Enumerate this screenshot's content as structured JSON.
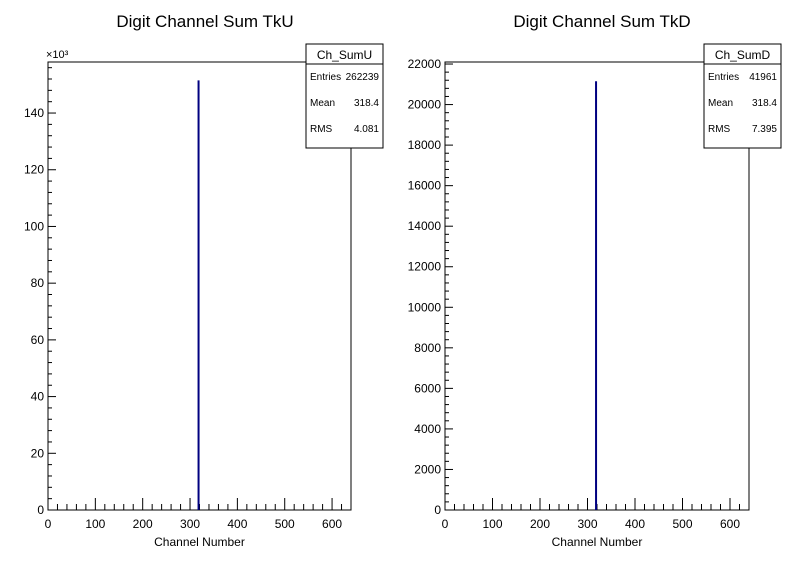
{
  "chart_data": [
    {
      "type": "bar",
      "title": "Digit Channel Sum TkU",
      "xlabel": "Channel Number",
      "ylabel": "",
      "y_multiplier_label": "×10³",
      "xlim": [
        0,
        640
      ],
      "ylim": [
        0,
        158
      ],
      "xticks": [
        0,
        100,
        200,
        300,
        400,
        500,
        600
      ],
      "yticks": [
        0,
        20,
        40,
        60,
        80,
        100,
        120,
        140
      ],
      "series": [
        {
          "x": [
            318
          ],
          "values": [
            151.5
          ]
        }
      ],
      "line_color": "#000080",
      "stats": {
        "name": "Ch_SumU",
        "rows": [
          {
            "label": "Entries",
            "value": "262239"
          },
          {
            "label": "Mean",
            "value": "318.4"
          },
          {
            "label": "RMS",
            "value": "4.081"
          }
        ]
      }
    },
    {
      "type": "bar",
      "title": "Digit Channel Sum TkD",
      "xlabel": "Channel Number",
      "ylabel": "",
      "y_multiplier_label": "",
      "xlim": [
        0,
        640
      ],
      "ylim": [
        0,
        22100
      ],
      "xticks": [
        0,
        100,
        200,
        300,
        400,
        500,
        600
      ],
      "yticks": [
        0,
        2000,
        4000,
        6000,
        8000,
        10000,
        12000,
        14000,
        16000,
        18000,
        20000,
        22000
      ],
      "series": [
        {
          "x": [
            318
          ],
          "values": [
            21150
          ]
        }
      ],
      "line_color": "#000080",
      "stats": {
        "name": "Ch_SumD",
        "rows": [
          {
            "label": "Entries",
            "value": "41961"
          },
          {
            "label": "Mean",
            "value": "318.4"
          },
          {
            "label": "RMS",
            "value": "7.395"
          }
        ]
      }
    }
  ]
}
